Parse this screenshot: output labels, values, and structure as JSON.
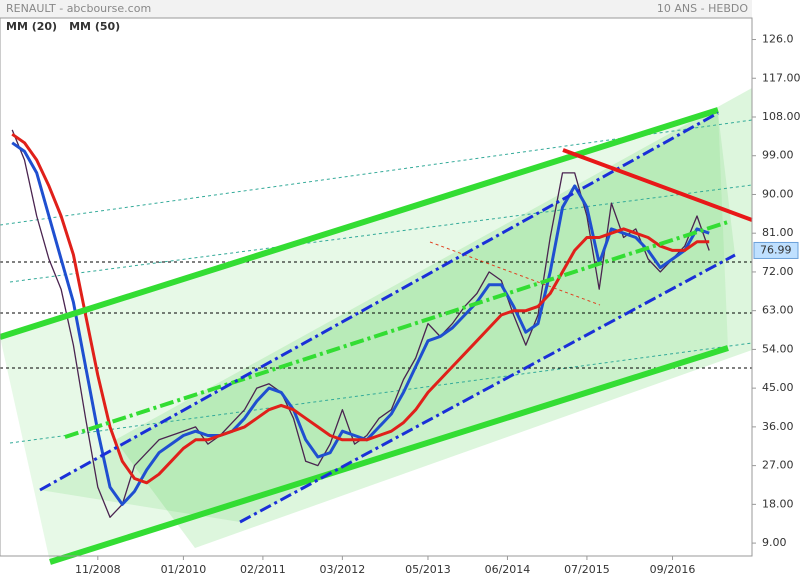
{
  "chart_data": {
    "type": "line",
    "title": "RENAULT - abcbourse.com",
    "subtitle": "10 ANS - HEBDO",
    "x": [
      "09/2007",
      "11/2007",
      "01/2008",
      "03/2008",
      "05/2008",
      "07/2008",
      "09/2008",
      "11/2008",
      "01/2009",
      "03/2009",
      "05/2009",
      "07/2009",
      "09/2009",
      "11/2009",
      "01/2010",
      "03/2010",
      "05/2010",
      "07/2010",
      "09/2010",
      "11/2010",
      "01/2011",
      "03/2011",
      "05/2011",
      "07/2011",
      "09/2011",
      "11/2011",
      "01/2012",
      "03/2012",
      "05/2012",
      "07/2012",
      "09/2012",
      "11/2012",
      "01/2013",
      "03/2013",
      "05/2013",
      "07/2013",
      "09/2013",
      "11/2013",
      "01/2014",
      "03/2014",
      "05/2014",
      "07/2014",
      "09/2014",
      "11/2014",
      "01/2015",
      "03/2015",
      "05/2015",
      "07/2015",
      "09/2015",
      "11/2015",
      "01/2016",
      "03/2016",
      "05/2016",
      "07/2016",
      "09/2016",
      "11/2016",
      "01/2017",
      "03/2017"
    ],
    "xlim": [
      "07/2007",
      "10/2017"
    ],
    "xticks": [
      "11/2008",
      "01/2010",
      "02/2011",
      "03/2012",
      "05/2013",
      "06/2014",
      "07/2015",
      "09/2016"
    ],
    "ylim": [
      6,
      131
    ],
    "yticks": [
      {
        "value": 9,
        "label": "9.00"
      },
      {
        "value": 18,
        "label": "18.00"
      },
      {
        "value": 27,
        "label": "27.00"
      },
      {
        "value": 36,
        "label": "36.00"
      },
      {
        "value": 45,
        "label": "45.00"
      },
      {
        "value": 54,
        "label": "54.00"
      },
      {
        "value": 63,
        "label": "63.00"
      },
      {
        "value": 72,
        "label": "72.00"
      },
      {
        "value": 81,
        "label": "81.00"
      },
      {
        "value": 90,
        "label": "90.00"
      },
      {
        "value": 99,
        "label": "99.00"
      },
      {
        "value": 108,
        "label": "108.00"
      },
      {
        "value": 117,
        "label": "117.00"
      },
      {
        "value": 126,
        "label": "126.0"
      }
    ],
    "last_value": 76.99,
    "series": [
      {
        "color": "#4a2450",
        "width": 1.3,
        "values": [
          105,
          98,
          85,
          75,
          68,
          55,
          38,
          22,
          15,
          18,
          27,
          30,
          33,
          34,
          35,
          36,
          32,
          34,
          37,
          40,
          45,
          46,
          44,
          38,
          28,
          27,
          32,
          40,
          32,
          34,
          38,
          40,
          47,
          52,
          60,
          57,
          60,
          64,
          67,
          72,
          70,
          62,
          55,
          62,
          80,
          95,
          95,
          85,
          68,
          88,
          80,
          82,
          75,
          72,
          75,
          78,
          85,
          76.99
        ]
      },
      {
        "name": "MM (20)",
        "color": "#1f4fd0",
        "width": 3,
        "values": [
          102,
          100,
          95,
          85,
          75,
          65,
          50,
          35,
          22,
          18,
          21,
          26,
          30,
          32,
          34,
          35,
          34,
          34,
          35,
          38,
          42,
          45,
          44,
          40,
          33,
          29,
          30,
          35,
          34,
          33,
          36,
          39,
          44,
          50,
          56,
          57,
          59,
          62,
          65,
          69,
          69,
          64,
          58,
          60,
          72,
          87,
          92,
          87,
          74,
          82,
          81,
          80,
          77,
          73,
          75,
          77,
          82,
          81
        ]
      },
      {
        "name": "MM (50)",
        "color": "#e0201a",
        "width": 3,
        "values": [
          104,
          102,
          98,
          92,
          85,
          76,
          62,
          48,
          36,
          28,
          24,
          23,
          25,
          28,
          31,
          33,
          33,
          34,
          35,
          36,
          38,
          40,
          41,
          40,
          38,
          36,
          34,
          33,
          33,
          33,
          34,
          35,
          37,
          40,
          44,
          47,
          50,
          53,
          56,
          59,
          62,
          63,
          63,
          64,
          67,
          72,
          77,
          80,
          80,
          81,
          82,
          81,
          80,
          78,
          77,
          77,
          79,
          79
        ]
      }
    ]
  }
}
